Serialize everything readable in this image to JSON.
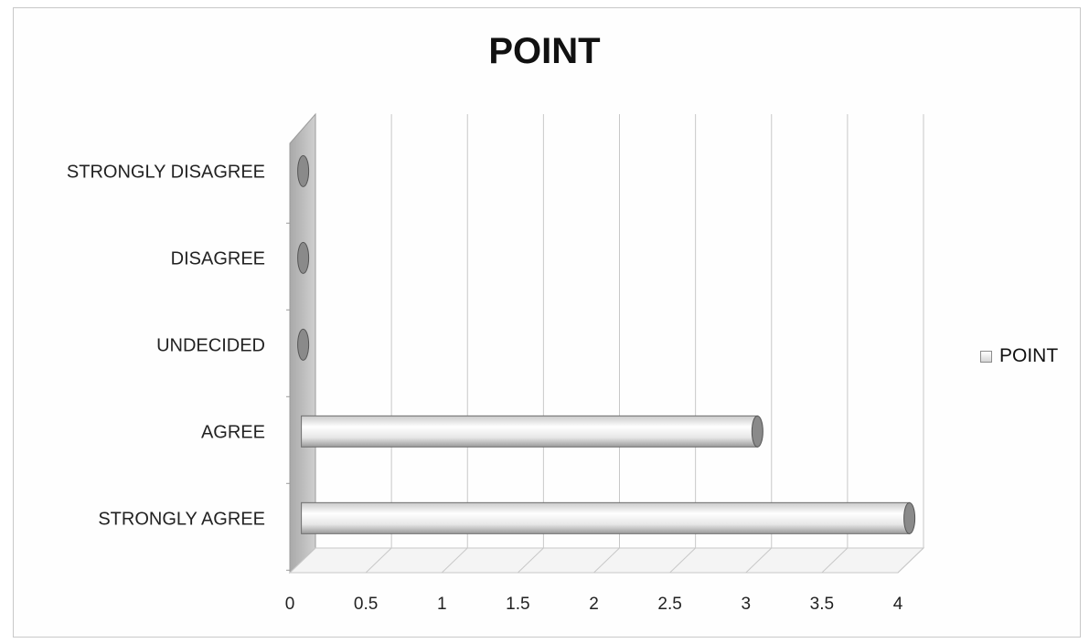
{
  "chart_data": {
    "type": "bar",
    "orientation": "horizontal",
    "style": "3d-cylinder",
    "title": "POINT",
    "categories": [
      "STRONGLY AGREE",
      "AGREE",
      "UNDECIDED",
      "DISAGREE",
      "STRONGLY DISAGREE"
    ],
    "series": [
      {
        "name": "POINT",
        "values": [
          4,
          3,
          0,
          0,
          0
        ]
      }
    ],
    "xlim": [
      0,
      4
    ],
    "xticks": [
      "0",
      "0.5",
      "1",
      "1.5",
      "2",
      "2.5",
      "3",
      "3.5",
      "4"
    ],
    "grid": true,
    "legend": {
      "position": "right",
      "entries": [
        "POINT"
      ]
    },
    "colors": {
      "bar_light": "#ffffff",
      "bar_shade": "#c9c9c9",
      "bar_cap": "#8a8a8a",
      "wall": "#bdbdbd",
      "grid": "#c8c8c8"
    }
  }
}
